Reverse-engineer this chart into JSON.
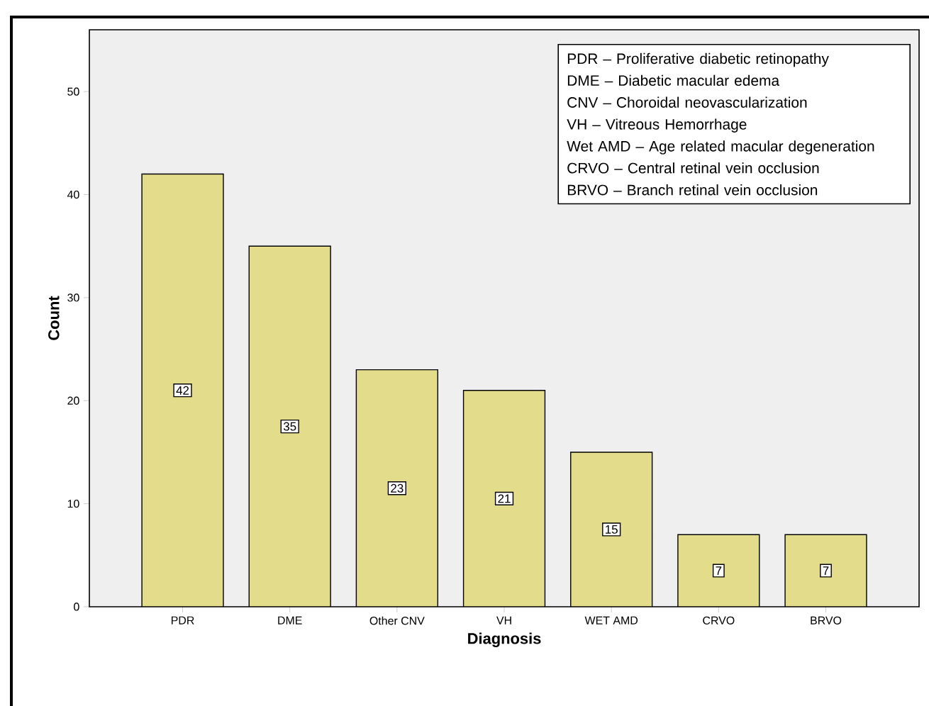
{
  "chart_data": {
    "type": "bar",
    "xlabel": "Diagnosis",
    "ylabel": "Count",
    "categories": [
      "PDR",
      "DME",
      "Other CNV",
      "VH",
      "WET AMD",
      "CRVO",
      "BRVO"
    ],
    "values": [
      42,
      35,
      23,
      21,
      15,
      7,
      7
    ],
    "color": "#e3dc8a",
    "ylim": [
      0,
      56
    ],
    "yticks": [
      0,
      10,
      20,
      30,
      40,
      50
    ],
    "data_labels": true,
    "annotations": [
      "PDR – Proliferative diabetic retinopathy",
      "DME – Diabetic macular edema",
      "CNV – Choroidal neovascularization",
      "VH – Vitreous Hemorrhage",
      "Wet AMD – Age related macular degeneration",
      "CRVO – Central retinal vein occlusion",
      "BRVO – Branch retinal vein occlusion"
    ]
  }
}
